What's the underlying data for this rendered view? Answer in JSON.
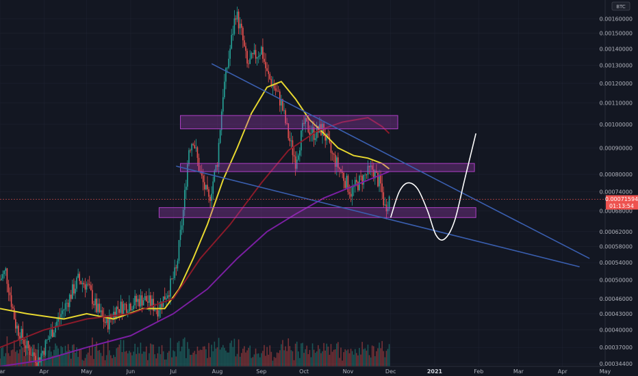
{
  "symbol": "BTC",
  "current_price_label": "0.00071594",
  "countdown_label": "01:13:54",
  "colors": {
    "background": "#131722",
    "grid": "#1e2230",
    "up": "#26a69a",
    "down": "#ef5350",
    "ma_fast": "#e8d830",
    "ma_mid": "#8b1a2a",
    "ma_slow": "#7b1fa2",
    "trendline": "#3a5fb0",
    "zone": "#b040c8",
    "projection": "#ffffff",
    "price_badge": "#ef5350"
  },
  "chart_data": {
    "type": "candlestick",
    "title": "",
    "xlabel": "",
    "ylabel": "",
    "y_scale": "log",
    "ylim": [
      0.00034,
      0.00174
    ],
    "y_ticks": [
      "0.00160000",
      "0.00150000",
      "0.00140000",
      "0.00130000",
      "0.00120000",
      "0.00110000",
      "0.00100000",
      "0.00090000",
      "0.00080000",
      "0.00074000",
      "0.00068000",
      "0.00062000",
      "0.00058000",
      "0.00054000",
      "0.00050000",
      "0.00046000",
      "0.00043000",
      "0.00040000",
      "0.00037000",
      "0.00034400"
    ],
    "y_tick_values": [
      0.0016,
      0.0015,
      0.0014,
      0.0013,
      0.0012,
      0.0011,
      0.001,
      0.0009,
      0.0008,
      0.00074,
      0.00068,
      0.00062,
      0.00058,
      0.00054,
      0.0005,
      0.00046,
      0.00043,
      0.0004,
      0.00037,
      0.000344
    ],
    "x_ticks": [
      "Mar",
      "Apr",
      "May",
      "Jun",
      "Jul",
      "Aug",
      "Sep",
      "Oct",
      "Nov",
      "Dec",
      "2021",
      "Feb",
      "Mar",
      "Apr",
      "May"
    ],
    "x_tick_dates": [
      "2020-03-01",
      "2020-04-01",
      "2020-05-01",
      "2020-06-01",
      "2020-07-01",
      "2020-08-01",
      "2020-09-01",
      "2020-10-01",
      "2020-11-01",
      "2020-12-01",
      "2021-01-01",
      "2021-02-01",
      "2021-03-01",
      "2021-04-01",
      "2021-05-01"
    ],
    "xlim": [
      "2020-03-01",
      "2021-05-01"
    ],
    "price_path": [
      [
        "2020-03-01",
        0.0005
      ],
      [
        "2020-03-05",
        0.00052
      ],
      [
        "2020-03-12",
        0.00041
      ],
      [
        "2020-03-20",
        0.00037
      ],
      [
        "2020-03-28",
        0.00035
      ],
      [
        "2020-04-05",
        0.00039
      ],
      [
        "2020-04-15",
        0.00044
      ],
      [
        "2020-04-25",
        0.0005
      ],
      [
        "2020-05-01",
        0.00049
      ],
      [
        "2020-05-08",
        0.00044
      ],
      [
        "2020-05-15",
        0.00041
      ],
      [
        "2020-05-22",
        0.00044
      ],
      [
        "2020-06-01",
        0.00045
      ],
      [
        "2020-06-10",
        0.00046
      ],
      [
        "2020-06-20",
        0.00044
      ],
      [
        "2020-06-28",
        0.00048
      ],
      [
        "2020-07-03",
        0.00052
      ],
      [
        "2020-07-08",
        0.00068
      ],
      [
        "2020-07-12",
        0.0009
      ],
      [
        "2020-07-15",
        0.00094
      ],
      [
        "2020-07-20",
        0.0008
      ],
      [
        "2020-07-26",
        0.00071
      ],
      [
        "2020-08-01",
        0.00085
      ],
      [
        "2020-08-05",
        0.00115
      ],
      [
        "2020-08-10",
        0.0014
      ],
      [
        "2020-08-14",
        0.00165
      ],
      [
        "2020-08-18",
        0.0015
      ],
      [
        "2020-08-22",
        0.0013
      ],
      [
        "2020-08-27",
        0.00135
      ],
      [
        "2020-09-01",
        0.0014
      ],
      [
        "2020-09-05",
        0.00125
      ],
      [
        "2020-09-10",
        0.00118
      ],
      [
        "2020-09-15",
        0.0011
      ],
      [
        "2020-09-20",
        0.00095
      ],
      [
        "2020-09-25",
        0.00085
      ],
      [
        "2020-10-01",
        0.001
      ],
      [
        "2020-10-08",
        0.00096
      ],
      [
        "2020-10-14",
        0.00098
      ],
      [
        "2020-10-20",
        0.00088
      ],
      [
        "2020-10-28",
        0.0008
      ],
      [
        "2020-11-03",
        0.00074
      ],
      [
        "2020-11-10",
        0.00078
      ],
      [
        "2020-11-18",
        0.00082
      ],
      [
        "2020-11-24",
        0.00076
      ],
      [
        "2020-11-27",
        0.00069
      ],
      [
        "2020-11-30",
        0.00072
      ]
    ],
    "moving_averages": [
      {
        "key": "ma_fast",
        "points": [
          [
            "2020-03-01",
            0.00044
          ],
          [
            "2020-03-20",
            0.00043
          ],
          [
            "2020-04-15",
            0.00042
          ],
          [
            "2020-05-01",
            0.00043
          ],
          [
            "2020-05-20",
            0.00042
          ],
          [
            "2020-06-10",
            0.00044
          ],
          [
            "2020-06-25",
            0.00044
          ],
          [
            "2020-07-05",
            0.00048
          ],
          [
            "2020-07-15",
            0.00055
          ],
          [
            "2020-07-25",
            0.00064
          ],
          [
            "2020-08-05",
            0.00078
          ],
          [
            "2020-08-15",
            0.0009
          ],
          [
            "2020-08-25",
            0.00105
          ],
          [
            "2020-09-05",
            0.00118
          ],
          [
            "2020-09-15",
            0.00121
          ],
          [
            "2020-09-25",
            0.00112
          ],
          [
            "2020-10-05",
            0.00102
          ],
          [
            "2020-10-15",
            0.00096
          ],
          [
            "2020-10-25",
            0.0009
          ],
          [
            "2020-11-05",
            0.00087
          ],
          [
            "2020-11-15",
            0.00086
          ],
          [
            "2020-11-25",
            0.00084
          ],
          [
            "2020-11-30",
            0.00082
          ]
        ]
      },
      {
        "key": "ma_mid",
        "points": [
          [
            "2020-03-01",
            0.00037
          ],
          [
            "2020-04-01",
            0.0004
          ],
          [
            "2020-05-01",
            0.00042
          ],
          [
            "2020-06-01",
            0.00043
          ],
          [
            "2020-07-01",
            0.00046
          ],
          [
            "2020-07-20",
            0.00055
          ],
          [
            "2020-08-10",
            0.00064
          ],
          [
            "2020-09-01",
            0.00077
          ],
          [
            "2020-09-20",
            0.00089
          ],
          [
            "2020-10-10",
            0.00097
          ],
          [
            "2020-10-28",
            0.00101
          ],
          [
            "2020-11-15",
            0.00103
          ],
          [
            "2020-11-25",
            0.00099
          ],
          [
            "2020-11-30",
            0.00096
          ]
        ]
      },
      {
        "key": "ma_slow",
        "points": [
          [
            "2020-03-01",
            0.00034
          ],
          [
            "2020-04-01",
            0.00035
          ],
          [
            "2020-05-01",
            0.00037
          ],
          [
            "2020-06-01",
            0.00039
          ],
          [
            "2020-07-01",
            0.00043
          ],
          [
            "2020-07-25",
            0.00048
          ],
          [
            "2020-08-15",
            0.00055
          ],
          [
            "2020-09-05",
            0.00062
          ],
          [
            "2020-09-25",
            0.00067
          ],
          [
            "2020-10-15",
            0.00072
          ],
          [
            "2020-11-05",
            0.00076
          ],
          [
            "2020-11-20",
            0.00079
          ],
          [
            "2020-11-30",
            0.00081
          ]
        ]
      }
    ],
    "trendlines": [
      {
        "from": [
          "2020-07-28",
          0.00131
        ],
        "to": [
          "2021-04-20",
          0.00055
        ]
      },
      {
        "from": [
          "2020-07-03",
          0.00083
        ],
        "to": [
          "2021-04-13",
          0.00053
        ]
      }
    ],
    "zones": [
      {
        "start": "2020-07-06",
        "end": "2020-12-06",
        "low": 0.00098,
        "high": 0.00104
      },
      {
        "start": "2020-07-06",
        "end": "2021-01-29",
        "low": 0.00081,
        "high": 0.00084
      },
      {
        "start": "2020-06-21",
        "end": "2021-01-30",
        "low": 0.00066,
        "high": 0.00069
      }
    ],
    "projection": [
      [
        "2020-12-01",
        0.00066
      ],
      [
        "2020-12-07",
        0.00074
      ],
      [
        "2020-12-13",
        0.00077
      ],
      [
        "2020-12-20",
        0.00075
      ],
      [
        "2020-12-27",
        0.00068
      ],
      [
        "2021-01-02",
        0.00061
      ],
      [
        "2021-01-08",
        0.0006
      ],
      [
        "2021-01-15",
        0.00065
      ],
      [
        "2021-01-22",
        0.00078
      ],
      [
        "2021-01-30",
        0.00096
      ]
    ],
    "current_price": 0.00071594,
    "volume_note": "volume histogram shown at bottom"
  }
}
